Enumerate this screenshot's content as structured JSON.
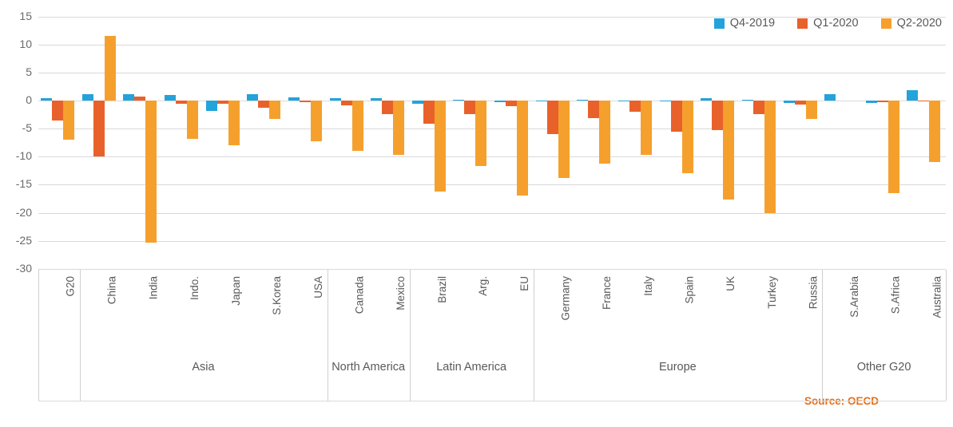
{
  "legend": {
    "items": [
      {
        "label": "Q4-2019",
        "color": "#23A3DB"
      },
      {
        "label": "Q1-2020",
        "color": "#E8612A"
      },
      {
        "label": "Q2-2020",
        "color": "#F5A02D"
      }
    ]
  },
  "y_axis": {
    "ticks": [
      15,
      10,
      5,
      0,
      -5,
      -10,
      -15,
      -20,
      -25,
      -30
    ]
  },
  "source": {
    "text": "Source: OECD",
    "color": "#E2701C"
  },
  "chart_data": {
    "type": "bar",
    "title": "",
    "xlabel": "",
    "ylabel": "",
    "ylim": [
      -30,
      15
    ],
    "grid": true,
    "legend_position": "top-right",
    "categories": [
      "G20",
      "China",
      "India",
      "Indo.",
      "Japan",
      "S.Korea",
      "USA",
      "Canada",
      "Mexico",
      "Brazil",
      "Arg.",
      "EU",
      "Germany",
      "France",
      "Italy",
      "Spain",
      "UK",
      "Turkey",
      "Russia",
      "S.Arabia",
      "S.Africa",
      "Australia"
    ],
    "series": [
      {
        "name": "Q4-2019",
        "color": "#23A3DB",
        "values": [
          0.5,
          1.1,
          1.1,
          1.0,
          -1.8,
          1.1,
          0.6,
          0.5,
          0.4,
          -0.6,
          0.2,
          -0.3,
          -0.1,
          0.2,
          -0.1,
          -0.2,
          0.4,
          0.2,
          -0.4,
          1.1,
          -0.4,
          1.9
        ]
      },
      {
        "name": "Q1-2020",
        "color": "#E8612A",
        "values": [
          -3.5,
          -10.0,
          0.7,
          -0.5,
          -0.6,
          -1.3,
          -0.3,
          -0.9,
          -2.4,
          -4.1,
          -2.4,
          -1.0,
          -6.0,
          -3.1,
          -2.0,
          -5.5,
          -5.2,
          -2.4,
          -0.7,
          0,
          -0.3,
          -0.1
        ]
      },
      {
        "name": "Q2-2020",
        "color": "#F5A02D",
        "values": [
          -6.9,
          11.6,
          -25.3,
          -6.8,
          -7.9,
          -3.2,
          -7.2,
          -9.0,
          -9.7,
          -16.2,
          -11.7,
          -16.9,
          -13.8,
          -11.2,
          -9.7,
          -13.0,
          -17.7,
          -20.1,
          -3.2,
          0,
          -16.5,
          -11.0
        ]
      }
    ],
    "groups": [
      {
        "label": "",
        "span": [
          0,
          0
        ]
      },
      {
        "label": "Asia",
        "span": [
          1,
          6
        ]
      },
      {
        "label": "North America",
        "span": [
          7,
          8
        ]
      },
      {
        "label": "Latin America",
        "span": [
          9,
          11
        ]
      },
      {
        "label": "Europe",
        "span": [
          12,
          18
        ]
      },
      {
        "label": "Other G20",
        "span": [
          19,
          21
        ]
      }
    ]
  }
}
